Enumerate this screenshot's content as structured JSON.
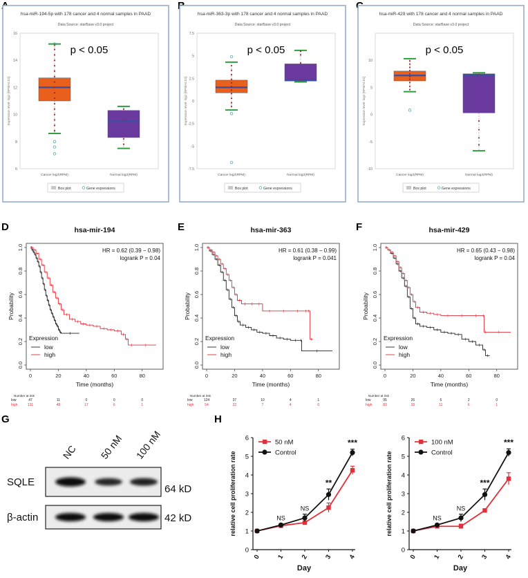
{
  "panels": {
    "A": {
      "letter": "A"
    },
    "B": {
      "letter": "B"
    },
    "C": {
      "letter": "C"
    },
    "D": {
      "letter": "D"
    },
    "E": {
      "letter": "E"
    },
    "F": {
      "letter": "F"
    },
    "G": {
      "letter": "G"
    },
    "H": {
      "letter": "H"
    }
  },
  "colors": {
    "box_cancer": "#e8601c",
    "box_normal": "#6b3a9e",
    "median": "#3a4fa0",
    "whisker": "#2e9e3e",
    "points": "#9b2a2a",
    "outlier": "#3aa0a8",
    "km_low": "#222222",
    "km_high": "#e0303a",
    "frame": "#8ba9c9",
    "prolif_treat": "#e0303a",
    "prolif_ctrl": "#111111"
  },
  "chart_data": [
    {
      "id": "A",
      "type": "boxplot",
      "title": "hsa-miR-194-5p with 178 cancer and 4 normal samples in PAAD",
      "subtitle": "Data Source: starBase v3.0 project",
      "annotation": "p < 0.05",
      "ylabel": "Expression level: log2 [RPM+0.01]",
      "ylim": [
        6,
        16
      ],
      "yticks": [
        6,
        8,
        10,
        12,
        14,
        16
      ],
      "categories": [
        "Cancer log2(RPM)",
        "Normal log2(RPM)"
      ],
      "boxes": [
        {
          "name": "Cancer log2(RPM)",
          "q1": 11.0,
          "median": 12.0,
          "q3": 12.7,
          "whisker_low": 8.6,
          "whisker_high": 15.2,
          "points": [
            8.8,
            9.2,
            9.6,
            10.0,
            10.4,
            10.8,
            11.2,
            11.6,
            12.0,
            12.4,
            12.8,
            13.2,
            13.6,
            14.0,
            14.4,
            14.8,
            15.1
          ],
          "outliers": [
            7.1,
            7.6,
            8.0,
            15.2
          ]
        },
        {
          "name": "Normal log2(RPM)",
          "q1": 8.3,
          "median": 9.5,
          "q3": 10.3,
          "whisker_low": 7.5,
          "whisker_high": 10.6,
          "points": [
            7.8,
            8.2,
            9.6,
            10.4
          ],
          "outliers": []
        }
      ],
      "legend": [
        "Box plot",
        "Gene expressions"
      ]
    },
    {
      "id": "B",
      "type": "boxplot",
      "title": "hsa-miR-363-3p with 178 cancer and 4 normal samples in PAAD",
      "subtitle": "Data Source: starBase v3.0 project",
      "annotation": "p < 0.05",
      "ylabel": "Expression level: log2 [RPM+0.01]",
      "ylim": [
        -7.5,
        7.5
      ],
      "yticks": [
        -7.5,
        -5,
        -2.5,
        0,
        2.5,
        5,
        7.5
      ],
      "categories": [
        "Cancer log2(RPM)",
        "Normal log2(RPM)"
      ],
      "boxes": [
        {
          "name": "Cancer log2(RPM)",
          "q1": 0.9,
          "median": 1.5,
          "q3": 2.3,
          "whisker_low": -1.0,
          "whisker_high": 4.3,
          "points": [
            -0.6,
            -0.2,
            0.3,
            0.8,
            1.2,
            1.6,
            2.0,
            2.4,
            2.9,
            3.4,
            3.9
          ],
          "outliers": [
            -1.4,
            -6.8,
            4.9
          ]
        },
        {
          "name": "Normal log2(RPM)",
          "q1": 2.2,
          "median": 2.3,
          "q3": 4.1,
          "whisker_low": 2.1,
          "whisker_high": 5.6,
          "points": [
            2.3,
            4.2,
            5.1,
            5.5
          ],
          "outliers": []
        }
      ],
      "legend": [
        "Box plot",
        "Gene expressions"
      ]
    },
    {
      "id": "C",
      "type": "boxplot",
      "title": "hsa-miR-429 with 178 cancer and 4 normal samples in PAAD",
      "subtitle": "Data Source: starBase v3.0 project",
      "annotation": "p < 0.05",
      "ylabel": "Expression level: log2 [RPM+0.01]",
      "ylim": [
        -10,
        15
      ],
      "yticks": [
        -10,
        -5,
        0,
        5,
        10
      ],
      "categories": [
        "Cancer log2(RPM)",
        "Normal log2(RPM)"
      ],
      "boxes": [
        {
          "name": "Cancer log2(RPM)",
          "q1": 6.2,
          "median": 7.2,
          "q3": 8.0,
          "whisker_low": 4.2,
          "whisker_high": 10.3,
          "points": [
            4.6,
            5.2,
            5.9,
            6.5,
            7.0,
            7.5,
            8.1,
            8.7,
            9.3,
            9.9
          ],
          "outliers": [
            0.8
          ]
        },
        {
          "name": "Normal log2(RPM)",
          "q1": 0.3,
          "median": 7.2,
          "q3": 7.5,
          "whisker_low": -6.7,
          "whisker_high": 7.7,
          "points": [
            -1.2,
            -2.8,
            -4.3,
            -5.6,
            7.4
          ],
          "outliers": []
        }
      ],
      "legend": [
        "Box plot",
        "Gene expressions"
      ]
    },
    {
      "id": "D",
      "type": "line",
      "subtype": "kaplan-meier",
      "title": "hsa-mir-194",
      "xlabel": "Time (months)",
      "ylabel": "Probability",
      "xlim": [
        0,
        92
      ],
      "ylim": [
        0,
        1
      ],
      "xticks": [
        0,
        20,
        40,
        60,
        80
      ],
      "yticks": [
        0.0,
        0.2,
        0.4,
        0.6,
        0.8,
        1.0
      ],
      "hr_text": "HR = 0.62 (0.39 − 0.98)",
      "logrank_text": "logrank P = 0.04",
      "legend_title": "Expression",
      "legend": [
        "low",
        "high"
      ],
      "series": [
        {
          "name": "low",
          "x": [
            0,
            1,
            2,
            3,
            4,
            5,
            6,
            7,
            8,
            9,
            10,
            11,
            12,
            13,
            14,
            15,
            16,
            17,
            18,
            19,
            20,
            21,
            22,
            35
          ],
          "y": [
            1,
            0.98,
            0.96,
            0.94,
            0.91,
            0.88,
            0.84,
            0.79,
            0.74,
            0.69,
            0.64,
            0.59,
            0.55,
            0.51,
            0.47,
            0.44,
            0.41,
            0.38,
            0.35,
            0.33,
            0.3,
            0.28,
            0.27,
            0.27
          ]
        },
        {
          "name": "high",
          "x": [
            0,
            2,
            4,
            6,
            8,
            10,
            12,
            14,
            16,
            18,
            20,
            22,
            24,
            28,
            32,
            36,
            40,
            45,
            50,
            55,
            60,
            65,
            68,
            70,
            75,
            90
          ],
          "y": [
            1,
            0.98,
            0.95,
            0.9,
            0.85,
            0.79,
            0.74,
            0.68,
            0.62,
            0.57,
            0.52,
            0.47,
            0.43,
            0.39,
            0.37,
            0.35,
            0.34,
            0.33,
            0.31,
            0.3,
            0.29,
            0.26,
            0.22,
            0.17,
            0.17,
            0.17
          ]
        }
      ],
      "risk_table": {
        "title": "Number at risk",
        "times": [
          0,
          20,
          40,
          60,
          80
        ],
        "rows": [
          {
            "label": "low",
            "values": [
              "47",
              "11",
              "0",
              "0",
              "0"
            ]
          },
          {
            "label": "high",
            "values": [
              "131",
              "48",
              "17",
              "6",
              "1"
            ]
          }
        ]
      }
    },
    {
      "id": "E",
      "type": "line",
      "subtype": "kaplan-meier",
      "title": "hsa-mir-363",
      "xlabel": "Time (months)",
      "ylabel": "Probability",
      "xlim": [
        0,
        92
      ],
      "ylim": [
        0,
        1
      ],
      "xticks": [
        0,
        20,
        40,
        60,
        80
      ],
      "yticks": [
        0.0,
        0.2,
        0.4,
        0.6,
        0.8,
        1.0
      ],
      "hr_text": "HR = 0.61 (0.38 − 0.99)",
      "logrank_text": "logrank P = 0.041",
      "legend_title": "Expression",
      "legend": [
        "low",
        "high"
      ],
      "series": [
        {
          "name": "low",
          "x": [
            0,
            2,
            4,
            6,
            8,
            10,
            12,
            14,
            16,
            18,
            20,
            22,
            24,
            28,
            32,
            36,
            40,
            45,
            50,
            55,
            60,
            67,
            68,
            90
          ],
          "y": [
            1,
            0.97,
            0.94,
            0.9,
            0.85,
            0.79,
            0.72,
            0.64,
            0.56,
            0.49,
            0.42,
            0.37,
            0.34,
            0.32,
            0.3,
            0.28,
            0.27,
            0.25,
            0.23,
            0.22,
            0.21,
            0.21,
            0.12,
            0.12
          ]
        },
        {
          "name": "high",
          "x": [
            0,
            2,
            4,
            6,
            8,
            10,
            12,
            14,
            16,
            18,
            20,
            22,
            25,
            30,
            35,
            40,
            50,
            60,
            70,
            72,
            74,
            76
          ],
          "y": [
            1,
            0.98,
            0.96,
            0.93,
            0.9,
            0.86,
            0.82,
            0.77,
            0.72,
            0.66,
            0.6,
            0.55,
            0.52,
            0.52,
            0.52,
            0.46,
            0.46,
            0.46,
            0.46,
            0.46,
            0.22,
            0.22
          ]
        }
      ],
      "risk_table": {
        "title": "Number at risk",
        "times": [
          0,
          20,
          40,
          60,
          80
        ],
        "rows": [
          {
            "label": "low",
            "values": [
              "124",
              "37",
              "10",
              "4",
              "1"
            ]
          },
          {
            "label": "high",
            "values": [
              "54",
              "22",
              "7",
              "4",
              "0"
            ]
          }
        ]
      }
    },
    {
      "id": "F",
      "type": "line",
      "subtype": "kaplan-meier",
      "title": "hsa-mir-429",
      "xlabel": "Time (months)",
      "ylabel": "Probability",
      "xlim": [
        0,
        92
      ],
      "ylim": [
        0,
        1
      ],
      "xticks": [
        0,
        20,
        40,
        60,
        80
      ],
      "yticks": [
        0.0,
        0.2,
        0.4,
        0.6,
        0.8,
        1.0
      ],
      "hr_text": "HR = 0.65 (0.43 − 0.98)",
      "logrank_text": "logrank P = 0.04",
      "legend_title": "Expression",
      "legend": [
        "low",
        "high"
      ],
      "series": [
        {
          "name": "low",
          "x": [
            0,
            2,
            4,
            6,
            8,
            10,
            12,
            14,
            16,
            18,
            20,
            22,
            25,
            30,
            35,
            40,
            45,
            50,
            55,
            60,
            65,
            70,
            72,
            75
          ],
          "y": [
            1,
            0.98,
            0.95,
            0.91,
            0.86,
            0.8,
            0.74,
            0.67,
            0.58,
            0.48,
            0.4,
            0.35,
            0.33,
            0.32,
            0.3,
            0.28,
            0.27,
            0.26,
            0.22,
            0.2,
            0.17,
            0.13,
            0.08,
            0.08
          ]
        },
        {
          "name": "high",
          "x": [
            0,
            2,
            4,
            6,
            8,
            10,
            12,
            14,
            16,
            18,
            20,
            22,
            25,
            30,
            35,
            40,
            50,
            60,
            70,
            71,
            73,
            90
          ],
          "y": [
            1,
            0.98,
            0.96,
            0.93,
            0.88,
            0.83,
            0.78,
            0.72,
            0.66,
            0.6,
            0.54,
            0.49,
            0.45,
            0.44,
            0.43,
            0.42,
            0.42,
            0.42,
            0.42,
            0.28,
            0.28,
            0.28
          ]
        }
      ],
      "risk_table": {
        "title": "Number at risk",
        "times": [
          0,
          20,
          40,
          60,
          80
        ],
        "rows": [
          {
            "label": "low",
            "values": [
              "95",
              "26",
              "6",
              "2",
              "0"
            ]
          },
          {
            "label": "high",
            "values": [
              "83",
              "33",
              "11",
              "6",
              "1"
            ]
          }
        ]
      }
    },
    {
      "id": "H1",
      "type": "line",
      "xlabel": "Day",
      "ylabel": "relative cell proliferation rate",
      "categories": [
        "0",
        "1",
        "2",
        "3",
        "4"
      ],
      "ylim": [
        0,
        6
      ],
      "yticks": [
        0,
        1,
        2,
        3,
        4,
        5,
        6
      ],
      "series": [
        {
          "name": "50 nM",
          "color": "#e0303a",
          "values": [
            1.0,
            1.28,
            1.45,
            2.25,
            4.25
          ],
          "errors": [
            0.05,
            0.06,
            0.08,
            0.25,
            0.22
          ]
        },
        {
          "name": "Control",
          "color": "#111111",
          "values": [
            1.0,
            1.32,
            1.7,
            2.95,
            5.2
          ],
          "errors": [
            0.05,
            0.07,
            0.2,
            0.3,
            0.18
          ]
        }
      ],
      "significance": [
        "",
        "NS",
        "NS",
        "**",
        "***"
      ]
    },
    {
      "id": "H2",
      "type": "line",
      "xlabel": "Day",
      "ylabel": "relative cell proliferation rate",
      "categories": [
        "0",
        "1",
        "2",
        "3",
        "4"
      ],
      "ylim": [
        0,
        6
      ],
      "yticks": [
        0,
        1,
        2,
        3,
        4,
        5,
        6
      ],
      "series": [
        {
          "name": "100 nM",
          "color": "#e0303a",
          "values": [
            1.0,
            1.25,
            1.25,
            2.1,
            3.8
          ],
          "errors": [
            0.05,
            0.06,
            0.12,
            0.06,
            0.32
          ]
        },
        {
          "name": "Control",
          "color": "#111111",
          "values": [
            1.0,
            1.32,
            1.7,
            2.95,
            5.2
          ],
          "errors": [
            0.05,
            0.07,
            0.2,
            0.3,
            0.2
          ]
        }
      ],
      "significance": [
        "",
        "NS",
        "NS",
        "***",
        "***"
      ]
    }
  ],
  "western_blot": {
    "lanes": [
      "NC",
      "50 nM",
      "100 nM"
    ],
    "rows": [
      {
        "protein": "SQLE",
        "kd": "64 kD",
        "intensities": [
          1.0,
          0.6,
          0.65
        ]
      },
      {
        "protein": "β-actin",
        "kd": "42 kD",
        "intensities": [
          1.0,
          1.0,
          1.0
        ]
      }
    ]
  }
}
